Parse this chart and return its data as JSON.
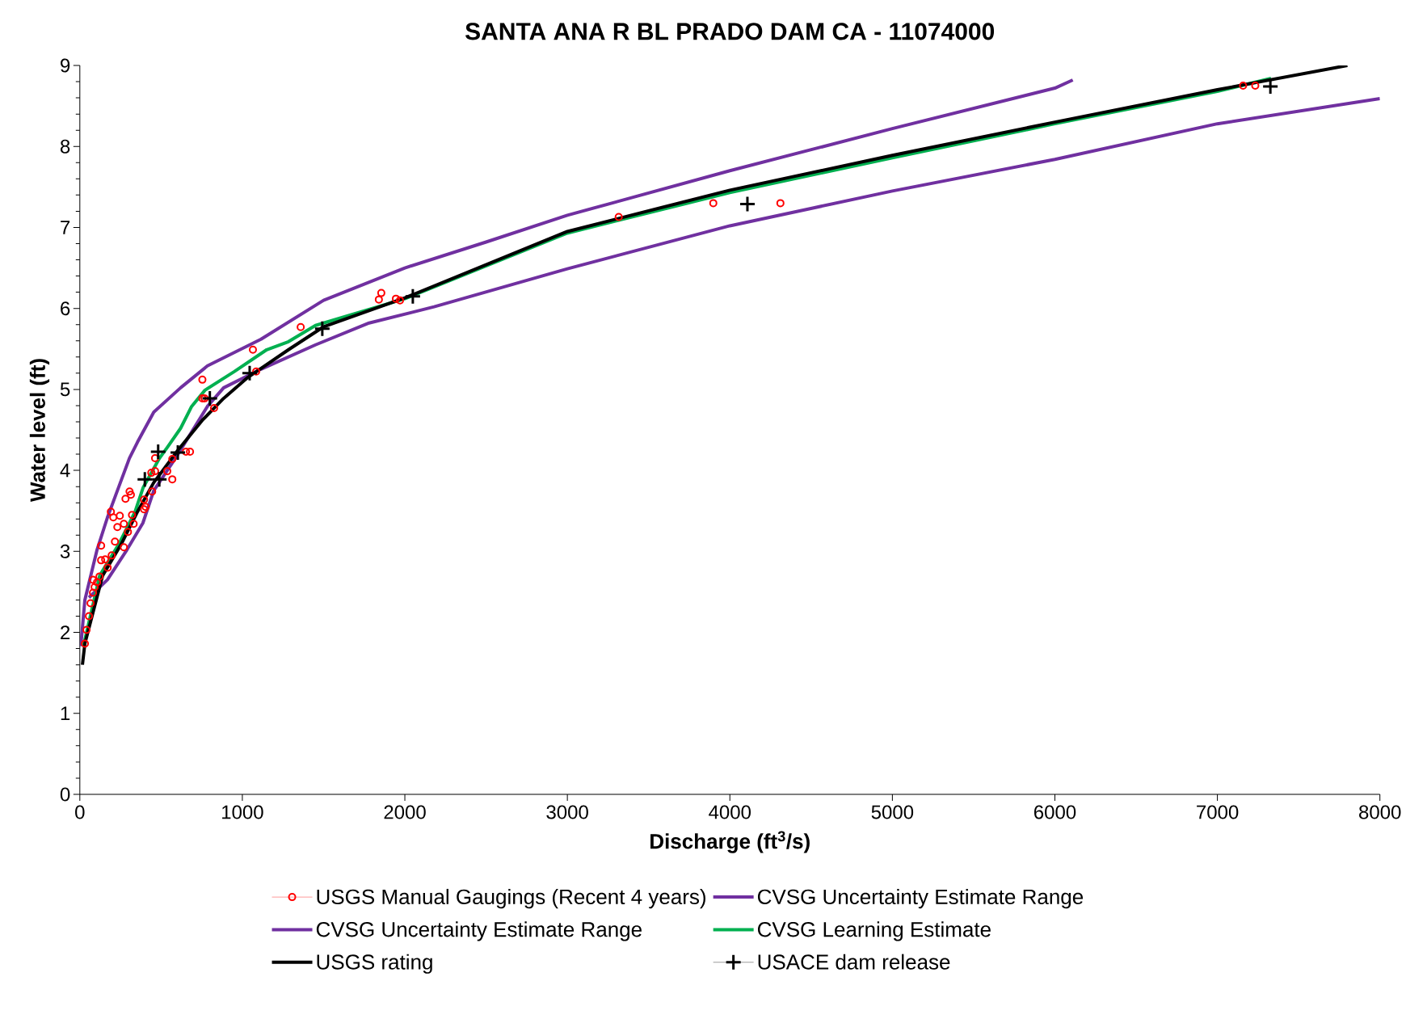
{
  "chart_data": {
    "type": "line",
    "title": "SANTA ANA R BL PRADO DAM CA - 11074000",
    "xlabel": "Discharge (ft$^{3}$/s)",
    "ylabel": "Water level (ft)",
    "xlim": [
      0,
      8000
    ],
    "ylim": [
      0,
      9
    ],
    "xticks": [
      0,
      1000,
      2000,
      3000,
      4000,
      5000,
      6000,
      7000,
      8000
    ],
    "yticks": [
      0,
      1,
      2,
      3,
      4,
      5,
      6,
      7,
      8,
      9
    ],
    "legend": "bottom",
    "series": [
      {
        "name": "USGS Manual Gaugings (Recent 4 years)",
        "type": "scatter",
        "marker": "circle",
        "color": "#ff0000",
        "x": [
          31,
          41,
          56,
          66,
          81,
          91,
          106,
          81,
          121,
          131,
          156,
          196,
          131,
          171,
          216,
          271,
          231,
          271,
          296,
          331,
          191,
          206,
          246,
          321,
          395,
          405,
          395,
          281,
          306,
          314,
          445,
          440,
          463,
          538,
          569,
          569,
          463,
          653,
          678,
          754,
          768,
          826,
          754,
          1085,
          1065,
          1359,
          1855,
          1840,
          1945,
          1970,
          3316,
          3898,
          4311,
          7158,
          7233
        ],
        "values": [
          1.86,
          2.03,
          2.2,
          2.36,
          2.49,
          2.56,
          2.62,
          2.65,
          2.69,
          2.89,
          2.9,
          2.95,
          3.07,
          2.8,
          3.12,
          3.05,
          3.3,
          3.34,
          3.24,
          3.34,
          3.49,
          3.42,
          3.44,
          3.45,
          3.64,
          3.55,
          3.52,
          3.65,
          3.74,
          3.7,
          3.74,
          3.97,
          3.99,
          3.99,
          3.89,
          4.14,
          4.15,
          4.23,
          4.23,
          4.89,
          4.89,
          4.77,
          5.12,
          5.22,
          5.49,
          5.77,
          6.19,
          6.11,
          6.12,
          6.1,
          7.13,
          7.3,
          7.3,
          8.75,
          8.75
        ]
      },
      {
        "name": "CVSG Uncertainty Estimate Range",
        "marker": "none",
        "color": "#7030a0",
        "x": [
          6,
          31,
          106,
          170,
          220,
          305,
          355,
          455,
          620,
          785,
          1115,
          1500,
          2000,
          2500,
          3000,
          4000,
          5000,
          6000,
          6110
        ],
        "values": [
          1.83,
          2.4,
          3.02,
          3.42,
          3.69,
          4.15,
          4.35,
          4.72,
          5.02,
          5.29,
          5.62,
          6.1,
          6.5,
          6.82,
          7.15,
          7.7,
          8.22,
          8.72,
          8.82
        ]
      },
      {
        "name": "CVSG Uncertainty Estimate Range",
        "marker": "none",
        "color": "#7030a0",
        "x": [
          56,
          170,
          290,
          388,
          455,
          588,
          785,
          885,
          1115,
          1450,
          1780,
          2180,
          3000,
          4000,
          5000,
          6000,
          7000,
          8000
        ],
        "values": [
          2.43,
          2.65,
          3.02,
          3.35,
          3.75,
          4.15,
          4.79,
          5.02,
          5.25,
          5.55,
          5.82,
          6.02,
          6.49,
          7.02,
          7.45,
          7.84,
          8.28,
          8.59
        ]
      },
      {
        "name": "CVSG Learning Estimate",
        "marker": "none",
        "color": "#00b050",
        "x": [
          22,
          122,
          240,
          340,
          390,
          490,
          540,
          620,
          688,
          770,
          950,
          1150,
          1284,
          1450,
          2000,
          3000,
          4000,
          5000,
          6000,
          7000,
          7330
        ],
        "values": [
          1.83,
          2.7,
          3.09,
          3.49,
          3.79,
          4.15,
          4.29,
          4.52,
          4.79,
          4.99,
          5.22,
          5.49,
          5.59,
          5.79,
          6.12,
          6.93,
          7.43,
          7.86,
          8.28,
          8.68,
          8.84
        ]
      },
      {
        "name": "USGS rating",
        "marker": "none",
        "color": "#000000",
        "x": [
          16,
          31,
          140,
          255,
          355,
          455,
          604,
          754,
          885,
          1035,
          1284,
          1497,
          2000,
          3000,
          4000,
          5000,
          6000,
          7000,
          7800
        ],
        "values": [
          1.6,
          1.86,
          2.7,
          3.09,
          3.49,
          3.85,
          4.25,
          4.62,
          4.89,
          5.15,
          5.49,
          5.77,
          6.13,
          6.95,
          7.46,
          7.89,
          8.3,
          8.7,
          9.0
        ]
      },
      {
        "name": "USACE dam release",
        "type": "scatter",
        "marker": "cross",
        "color": "#000000",
        "x": [
          400,
          489,
          482,
          603,
          800,
          1045,
          1492,
          2049,
          4108,
          7326
        ],
        "values": [
          3.89,
          3.89,
          4.23,
          4.22,
          4.89,
          5.2,
          5.75,
          6.15,
          7.29,
          8.74
        ]
      }
    ]
  }
}
